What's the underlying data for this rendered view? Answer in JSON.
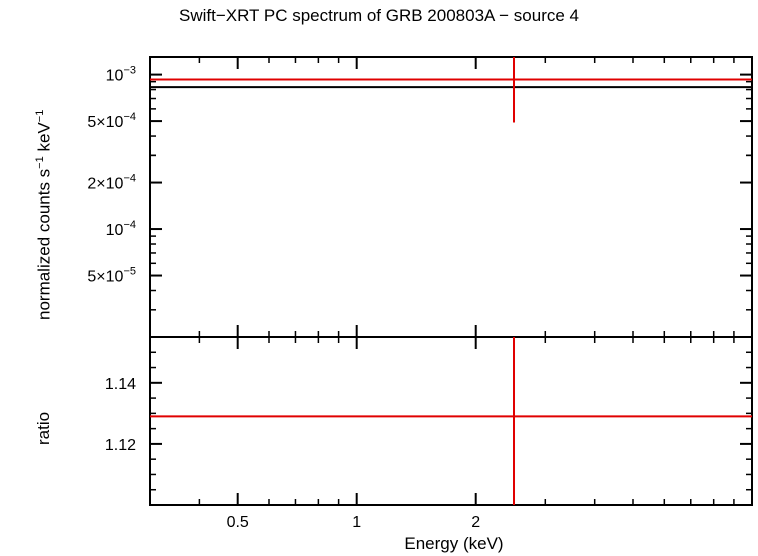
{
  "chart_data": [
    {
      "type": "scatter",
      "panel": "spectrum",
      "title": "Swift−XRT PC spectrum of GRB 200803A − source 4",
      "xlabel": "Energy (keV)",
      "ylabel_main": "normalized counts s",
      "ylabel_exp1": "−1",
      "ylabel_mid": " keV",
      "ylabel_exp2": "−1",
      "x_scale": "log",
      "y_scale": "log",
      "xlim": [
        0.3,
        10
      ],
      "ylim": [
        2e-05,
        0.0013
      ],
      "x_ticks": [
        {
          "value": 0.5,
          "label": ""
        },
        {
          "value": 1,
          "label": ""
        },
        {
          "value": 2,
          "label": ""
        }
      ],
      "y_ticks": [
        {
          "value": 5e-05,
          "mant": "5×10",
          "exp": "−5"
        },
        {
          "value": 0.0001,
          "mant": "10",
          "exp": "−4"
        },
        {
          "value": 0.0002,
          "mant": "2×10",
          "exp": "−4"
        },
        {
          "value": 0.0005,
          "mant": "5×10",
          "exp": "−4"
        },
        {
          "value": 0.001,
          "mant": "10",
          "exp": "−3"
        }
      ],
      "series": [
        {
          "kind": "model",
          "color": "#000000",
          "x": [
            0.3,
            10
          ],
          "y": [
            0.00083,
            0.00083
          ]
        },
        {
          "kind": "data",
          "color": "#e00000",
          "x": 2.5,
          "xerr": [
            0.3,
            10
          ],
          "y": 0.00093,
          "yerr_low": 0.00049,
          "yerr_high": 0.0013
        }
      ]
    },
    {
      "type": "scatter",
      "panel": "ratio",
      "ylabel": "ratio",
      "xlabel": "Energy (keV)",
      "x_scale": "log",
      "xlim": [
        0.3,
        10
      ],
      "ylim": [
        1.1,
        1.155
      ],
      "x_ticks": [
        {
          "value": 0.5,
          "label": "0.5"
        },
        {
          "value": 1,
          "label": "1"
        },
        {
          "value": 2,
          "label": "2"
        }
      ],
      "y_ticks": [
        {
          "value": 1.12,
          "label": "1.12"
        },
        {
          "value": 1.14,
          "label": "1.14"
        }
      ],
      "series": [
        {
          "kind": "data",
          "color": "#e00000",
          "x": 2.5,
          "xerr": [
            0.3,
            10
          ],
          "y": 1.129,
          "yerr_low": 1.1,
          "yerr_high": 1.155
        }
      ]
    }
  ]
}
